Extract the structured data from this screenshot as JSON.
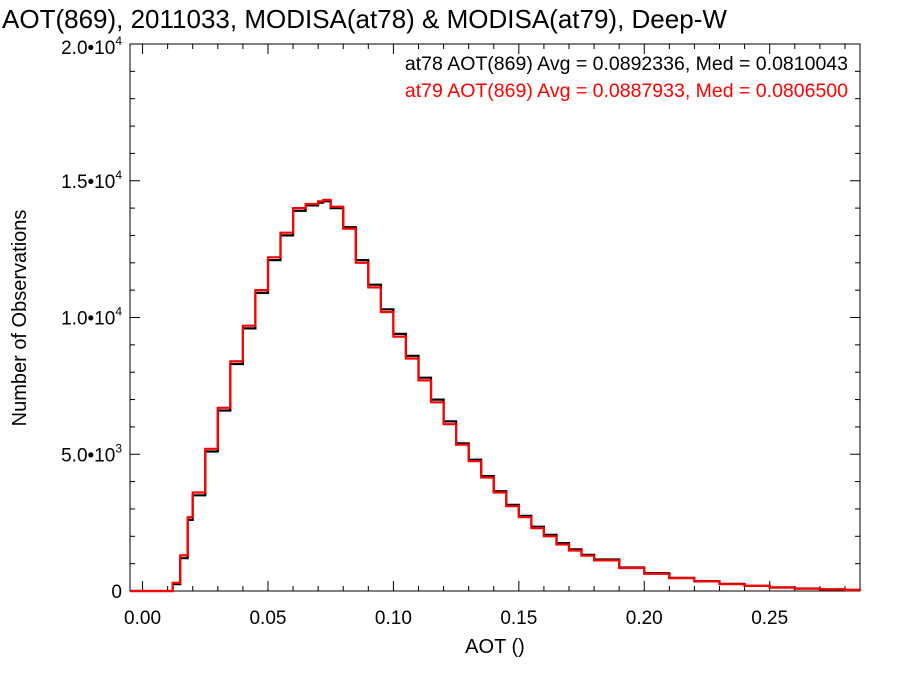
{
  "chart_data": {
    "type": "line",
    "title": "AOT(869), 2011033, MODISA(at78) & MODISA(at79), Deep-W",
    "xlabel": "AOT ()",
    "ylabel": "Number of Observations",
    "xlim": [
      -0.005,
      0.286
    ],
    "ylim": [
      0,
      20000
    ],
    "x_ticks": [
      0.0,
      0.05,
      0.1,
      0.15,
      0.2,
      0.25
    ],
    "x_tick_labels": [
      "0.00",
      "0.05",
      "0.10",
      "0.15",
      "0.20",
      "0.25"
    ],
    "y_tick_labels": [
      {
        "value": 0,
        "mantissa": "0",
        "exponent": ""
      },
      {
        "value": 5000,
        "mantissa": "5.0•10",
        "exponent": "3"
      },
      {
        "value": 10000,
        "mantissa": "1.0•10",
        "exponent": "4"
      },
      {
        "value": 15000,
        "mantissa": "1.5•10",
        "exponent": "4"
      },
      {
        "value": 20000,
        "mantissa": "2.0•10",
        "exponent": "4"
      }
    ],
    "grid": false,
    "series": [
      {
        "name": "at78",
        "color": "#000000",
        "annotation": "at78 AOT(869) Avg = 0.0892336, Med = 0.0810043",
        "x": [
          -0.005,
          0.0,
          0.005,
          0.008,
          0.01,
          0.012,
          0.015,
          0.018,
          0.02,
          0.025,
          0.03,
          0.035,
          0.04,
          0.045,
          0.05,
          0.055,
          0.06,
          0.065,
          0.07,
          0.072,
          0.075,
          0.08,
          0.085,
          0.09,
          0.095,
          0.1,
          0.105,
          0.11,
          0.115,
          0.12,
          0.125,
          0.13,
          0.135,
          0.14,
          0.145,
          0.15,
          0.155,
          0.16,
          0.165,
          0.17,
          0.175,
          0.18,
          0.19,
          0.2,
          0.21,
          0.22,
          0.23,
          0.24,
          0.25,
          0.26,
          0.27,
          0.28,
          0.286
        ],
        "y": [
          0,
          0,
          0,
          0,
          0,
          250,
          1200,
          2600,
          3500,
          5100,
          6600,
          8300,
          9600,
          10900,
          12100,
          13000,
          13900,
          14100,
          14200,
          14250,
          14000,
          13300,
          12100,
          11200,
          10300,
          9400,
          8600,
          7800,
          7000,
          6200,
          5400,
          4800,
          4200,
          3650,
          3150,
          2750,
          2350,
          2050,
          1750,
          1520,
          1320,
          1150,
          860,
          650,
          480,
          360,
          260,
          190,
          130,
          90,
          60,
          40,
          30
        ]
      },
      {
        "name": "at79",
        "color": "#ff0000",
        "annotation": "at79 AOT(869) Avg = 0.0887933, Med = 0.0806500",
        "x": [
          -0.005,
          0.0,
          0.005,
          0.008,
          0.01,
          0.012,
          0.015,
          0.018,
          0.02,
          0.025,
          0.03,
          0.035,
          0.04,
          0.045,
          0.05,
          0.055,
          0.06,
          0.065,
          0.07,
          0.072,
          0.075,
          0.08,
          0.085,
          0.09,
          0.095,
          0.1,
          0.105,
          0.11,
          0.115,
          0.12,
          0.125,
          0.13,
          0.135,
          0.14,
          0.145,
          0.15,
          0.155,
          0.16,
          0.165,
          0.17,
          0.175,
          0.18,
          0.19,
          0.2,
          0.21,
          0.22,
          0.23,
          0.24,
          0.25,
          0.26,
          0.27,
          0.28,
          0.286
        ],
        "y": [
          0,
          0,
          0,
          0,
          0,
          300,
          1300,
          2700,
          3600,
          5200,
          6700,
          8400,
          9700,
          11000,
          12200,
          13100,
          14000,
          14150,
          14250,
          14300,
          14050,
          13250,
          12000,
          11100,
          10200,
          9300,
          8500,
          7700,
          6900,
          6100,
          5350,
          4750,
          4150,
          3600,
          3100,
          2700,
          2300,
          2000,
          1700,
          1480,
          1290,
          1120,
          840,
          630,
          470,
          350,
          250,
          185,
          125,
          88,
          58,
          38,
          28
        ]
      }
    ]
  }
}
